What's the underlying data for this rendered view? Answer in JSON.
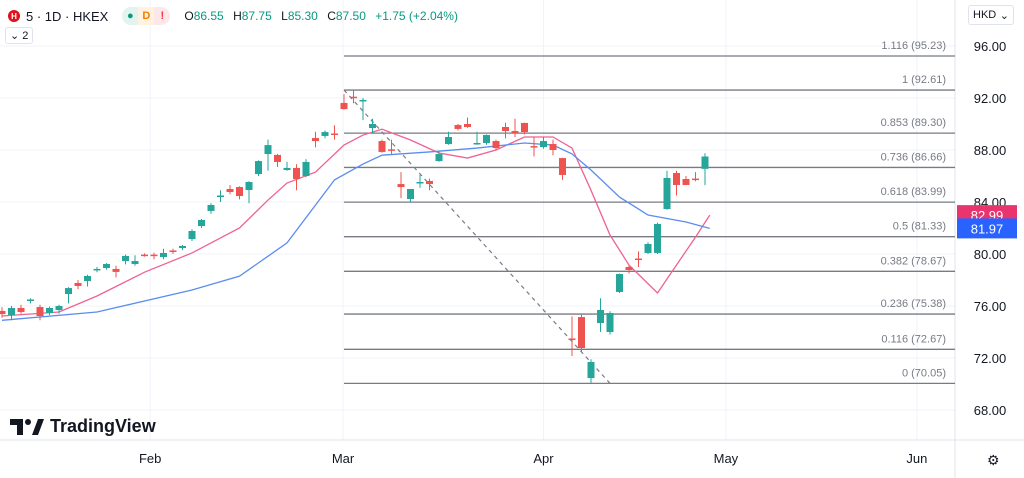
{
  "header": {
    "symbol": "5 · 1D · HKEX",
    "status": [
      "●",
      "D",
      "!"
    ],
    "ohlc": {
      "o_label": "O",
      "o": "86.55",
      "h_label": "H",
      "h": "87.75",
      "l_label": "L",
      "l": "85.30",
      "c_label": "C",
      "c": "87.50",
      "change": "+1.75 (+2.04%)"
    },
    "indicators_collapse": "⌄ 2",
    "currency": "HKD"
  },
  "logo_text": "TradingView",
  "colors": {
    "up": "#26a69a",
    "down": "#ef5350",
    "ma_fast": "#f06292",
    "ma_slow": "#5b8def",
    "fast_label": "#e8356d",
    "slow_label": "#2962ff",
    "fib": "#787b86"
  },
  "chart_data": {
    "type": "candlestick",
    "ylim": [
      66,
      98
    ],
    "y_ticks": [
      "96.00",
      "92.00",
      "88.00",
      "84.00",
      "80.00",
      "76.00",
      "72.00",
      "68.00"
    ],
    "x_ticks": [
      {
        "label": "Feb",
        "bar": 15.6
      },
      {
        "label": "Mar",
        "bar": 35.9
      },
      {
        "label": "Apr",
        "bar": 57
      },
      {
        "label": "May",
        "bar": 76.2
      },
      {
        "label": "Jun",
        "bar": 96.3
      }
    ],
    "candles": [
      [
        75.62,
        75.9,
        75.1,
        75.38
      ],
      [
        75.31,
        76.0,
        74.9,
        75.85
      ],
      [
        75.85,
        76.1,
        75.4,
        75.54
      ],
      [
        76.4,
        76.6,
        76.2,
        76.5
      ],
      [
        75.92,
        76.1,
        74.9,
        75.23
      ],
      [
        75.46,
        75.95,
        75.3,
        75.85
      ],
      [
        75.69,
        76.1,
        75.4,
        76.0
      ],
      [
        76.92,
        77.45,
        76.2,
        77.38
      ],
      [
        77.77,
        78.0,
        77.3,
        77.54
      ],
      [
        77.92,
        78.4,
        77.5,
        78.31
      ],
      [
        78.8,
        79.0,
        78.6,
        78.85
      ],
      [
        78.92,
        79.3,
        78.8,
        79.23
      ],
      [
        78.85,
        79.1,
        78.2,
        78.62
      ],
      [
        79.46,
        79.95,
        79.2,
        79.85
      ],
      [
        79.23,
        79.9,
        79.1,
        79.46
      ],
      [
        79.95,
        80.05,
        79.8,
        79.9
      ],
      [
        79.95,
        80.1,
        79.6,
        79.88
      ],
      [
        79.77,
        80.4,
        79.6,
        80.08
      ],
      [
        80.27,
        80.4,
        80.0,
        80.2
      ],
      [
        80.46,
        80.7,
        80.3,
        80.62
      ],
      [
        81.15,
        81.9,
        81.0,
        81.77
      ],
      [
        82.15,
        82.7,
        82.0,
        82.62
      ],
      [
        83.31,
        83.9,
        83.1,
        83.77
      ],
      [
        84.42,
        84.9,
        84.0,
        84.5
      ],
      [
        85.0,
        85.3,
        84.6,
        84.77
      ],
      [
        85.15,
        85.2,
        84.2,
        84.46
      ],
      [
        84.92,
        85.6,
        83.9,
        85.54
      ],
      [
        86.15,
        87.2,
        86.0,
        87.15
      ],
      [
        87.69,
        88.8,
        86.4,
        88.38
      ],
      [
        87.62,
        87.7,
        86.7,
        87.08
      ],
      [
        86.46,
        87.1,
        86.4,
        86.62
      ],
      [
        86.62,
        86.9,
        84.9,
        85.77
      ],
      [
        86.0,
        87.3,
        85.9,
        87.08
      ],
      [
        88.92,
        89.4,
        88.2,
        88.69
      ],
      [
        89.08,
        89.5,
        88.9,
        89.38
      ],
      [
        89.27,
        89.9,
        88.8,
        89.2
      ],
      [
        91.62,
        92.3,
        91.1,
        91.15
      ],
      [
        92.1,
        92.61,
        91.6,
        92.0
      ],
      [
        91.8,
        92.0,
        90.3,
        91.85
      ],
      [
        89.69,
        90.4,
        89.3,
        90.0
      ],
      [
        88.69,
        88.8,
        87.8,
        87.85
      ],
      [
        88.05,
        88.8,
        87.7,
        88.0
      ],
      [
        85.38,
        86.3,
        84.3,
        85.15
      ],
      [
        84.23,
        85.0,
        84.0,
        85.0
      ],
      [
        85.5,
        86.1,
        85.1,
        85.54
      ],
      [
        85.62,
        85.8,
        84.9,
        85.38
      ],
      [
        87.15,
        87.9,
        87.1,
        87.69
      ],
      [
        88.46,
        89.4,
        88.4,
        89.0
      ],
      [
        89.92,
        90.0,
        89.5,
        89.62
      ],
      [
        90.0,
        90.5,
        89.7,
        89.77
      ],
      [
        88.5,
        89.4,
        88.4,
        88.54
      ],
      [
        88.54,
        89.2,
        88.4,
        89.15
      ],
      [
        88.69,
        88.8,
        88.0,
        88.15
      ],
      [
        89.77,
        90.1,
        88.9,
        89.46
      ],
      [
        89.46,
        90.4,
        89.0,
        89.3
      ],
      [
        90.08,
        90.1,
        89.2,
        89.38
      ],
      [
        88.3,
        89.0,
        87.5,
        88.2
      ],
      [
        88.23,
        89.0,
        88.1,
        88.69
      ],
      [
        88.46,
        88.8,
        87.6,
        88.0
      ],
      [
        87.38,
        87.4,
        85.7,
        86.08
      ],
      [
        73.5,
        75.2,
        72.15,
        73.4
      ],
      [
        75.15,
        75.4,
        72.5,
        72.77
      ],
      [
        70.46,
        71.9,
        70.05,
        71.69
      ],
      [
        74.69,
        76.6,
        74.0,
        75.69
      ],
      [
        74.0,
        75.6,
        73.8,
        75.46
      ],
      [
        77.08,
        78.5,
        77.0,
        78.46
      ],
      [
        79.0,
        79.1,
        78.5,
        78.77
      ],
      [
        79.65,
        80.2,
        79.0,
        79.6
      ],
      [
        80.08,
        80.9,
        80.0,
        80.77
      ],
      [
        80.08,
        82.4,
        80.0,
        82.31
      ],
      [
        83.46,
        86.4,
        83.4,
        85.85
      ],
      [
        86.23,
        86.4,
        84.5,
        85.31
      ],
      [
        85.77,
        86.0,
        85.3,
        85.31
      ],
      [
        85.8,
        86.3,
        85.6,
        85.75
      ],
      [
        86.55,
        87.75,
        85.3,
        87.5
      ]
    ],
    "series": [
      {
        "name": "MA fast",
        "value_label": "82.99",
        "points": [
          [
            0,
            75.23
          ],
          [
            6,
            75.54
          ],
          [
            10,
            76.77
          ],
          [
            15,
            78.6
          ],
          [
            20,
            80.08
          ],
          [
            25,
            82.0
          ],
          [
            28,
            84.15
          ],
          [
            30,
            85.46
          ],
          [
            33,
            86.3
          ],
          [
            36,
            88.38
          ],
          [
            38,
            89.15
          ],
          [
            40,
            89.6
          ],
          [
            43,
            88.77
          ],
          [
            46,
            87.77
          ],
          [
            49,
            87.38
          ],
          [
            52,
            88.0
          ],
          [
            55,
            89.0
          ],
          [
            58,
            89.0
          ],
          [
            60,
            88.15
          ],
          [
            62,
            84.9
          ],
          [
            64,
            81.46
          ],
          [
            66,
            79.15
          ],
          [
            69,
            77.0
          ],
          [
            71,
            79.15
          ],
          [
            73,
            81.3
          ],
          [
            74.5,
            82.99
          ]
        ]
      },
      {
        "name": "MA slow",
        "value_label": "81.97",
        "points": [
          [
            0,
            74.9
          ],
          [
            10,
            75.54
          ],
          [
            20,
            77.23
          ],
          [
            25,
            78.3
          ],
          [
            30,
            80.85
          ],
          [
            35,
            85.7
          ],
          [
            38,
            86.92
          ],
          [
            40,
            87.6
          ],
          [
            45,
            87.85
          ],
          [
            50,
            88.15
          ],
          [
            55,
            88.54
          ],
          [
            58,
            88.38
          ],
          [
            60,
            87.7
          ],
          [
            62,
            86.46
          ],
          [
            65,
            84.38
          ],
          [
            68,
            83.0
          ],
          [
            72,
            82.46
          ],
          [
            74.5,
            81.97
          ]
        ]
      }
    ],
    "trend_line": {
      "from": [
        36,
        92.61
      ],
      "to": [
        64,
        70.05
      ],
      "style": "dashed"
    },
    "fib_levels": [
      {
        "label": "1.116 (95.23)",
        "price": 95.23
      },
      {
        "label": "1 (92.61)",
        "price": 92.61
      },
      {
        "label": "0.853 (89.30)",
        "price": 89.3
      },
      {
        "label": "0.736 (86.66)",
        "price": 86.66
      },
      {
        "label": "0.618 (83.99)",
        "price": 83.99
      },
      {
        "label": "0.5 (81.33)",
        "price": 81.33
      },
      {
        "label": "0.382 (78.67)",
        "price": 78.67
      },
      {
        "label": "0.236 (75.38)",
        "price": 75.38
      },
      {
        "label": "0.116 (72.67)",
        "price": 72.67
      },
      {
        "label": "0 (70.05)",
        "price": 70.05
      }
    ],
    "fib_start_bar": 36
  }
}
